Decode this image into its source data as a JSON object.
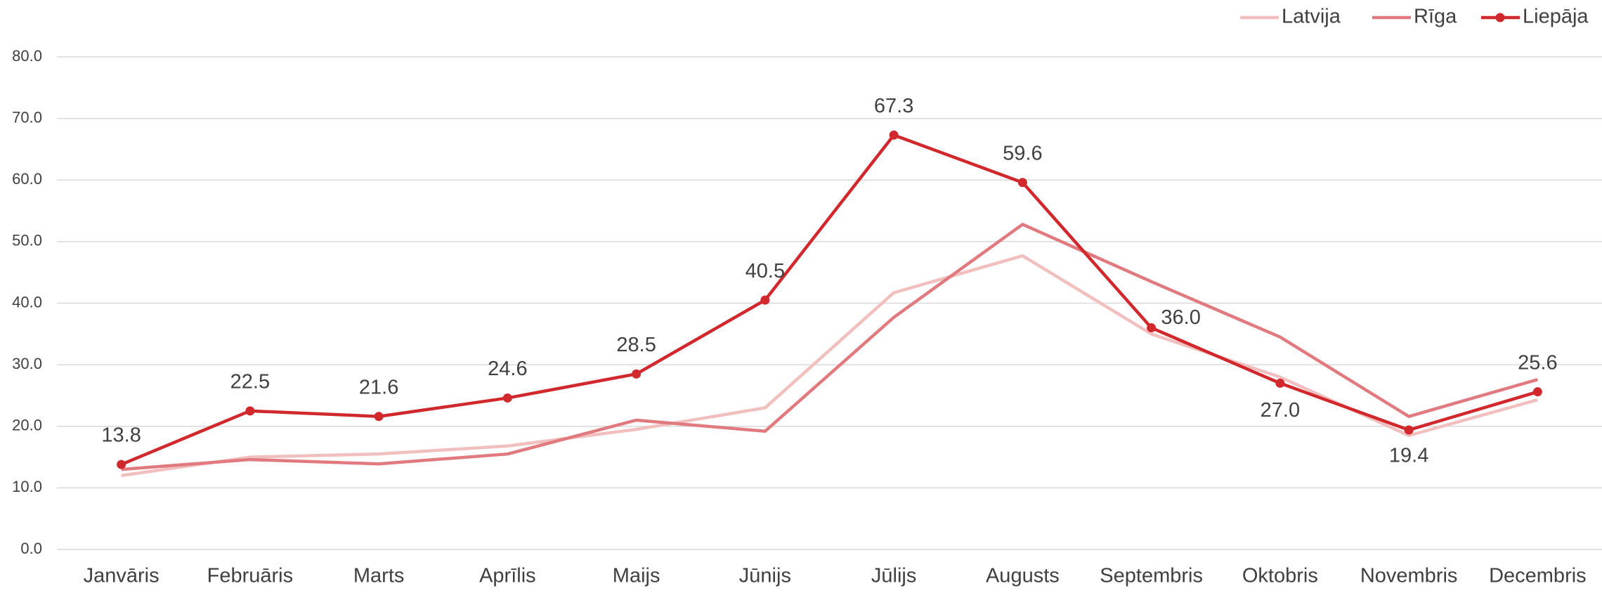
{
  "chart_data": {
    "type": "line",
    "categories": [
      "Janvāris",
      "Februāris",
      "Marts",
      "Aprīlis",
      "Maijs",
      "Jūnijs",
      "Jūlijs",
      "Augusts",
      "Septembris",
      "Oktobris",
      "Novembris",
      "Decembris"
    ],
    "series": [
      {
        "name": "Latvija",
        "color": "#f2bfbf",
        "values": [
          12.0,
          15.0,
          15.5,
          16.8,
          19.5,
          23.0,
          41.7,
          47.7,
          35.0,
          28.0,
          18.5,
          24.3
        ]
      },
      {
        "name": "Rīga",
        "color": "#e07a7f",
        "values": [
          13.0,
          14.6,
          13.9,
          15.5,
          21.0,
          19.2,
          37.7,
          52.8,
          43.5,
          34.5,
          21.6,
          27.6
        ]
      },
      {
        "name": "Liepāja",
        "color": "#d0282c",
        "markers": true,
        "values": [
          13.8,
          22.5,
          21.6,
          24.6,
          28.5,
          40.5,
          67.3,
          59.6,
          36.0,
          27.0,
          19.4,
          25.6
        ],
        "value_labels": [
          "13.8",
          "22.5",
          "21.6",
          "24.6",
          "28.5",
          "40.5",
          "67.3",
          "59.6",
          "36.0",
          "27.0",
          "19.4",
          "25.6"
        ]
      }
    ],
    "ylim": [
      0,
      80
    ],
    "yticks": [
      {
        "value": 0,
        "label": "0.0"
      },
      {
        "value": 10,
        "label": "10.0"
      },
      {
        "value": 20,
        "label": "20.0"
      },
      {
        "value": 30,
        "label": "30.0"
      },
      {
        "value": 40,
        "label": "40.0"
      },
      {
        "value": 50,
        "label": "50.0"
      },
      {
        "value": 60,
        "label": "60.0"
      },
      {
        "value": 70,
        "label": "70.0"
      },
      {
        "value": 80,
        "label": "80.0"
      }
    ],
    "grid": true,
    "legend": "top-right"
  }
}
